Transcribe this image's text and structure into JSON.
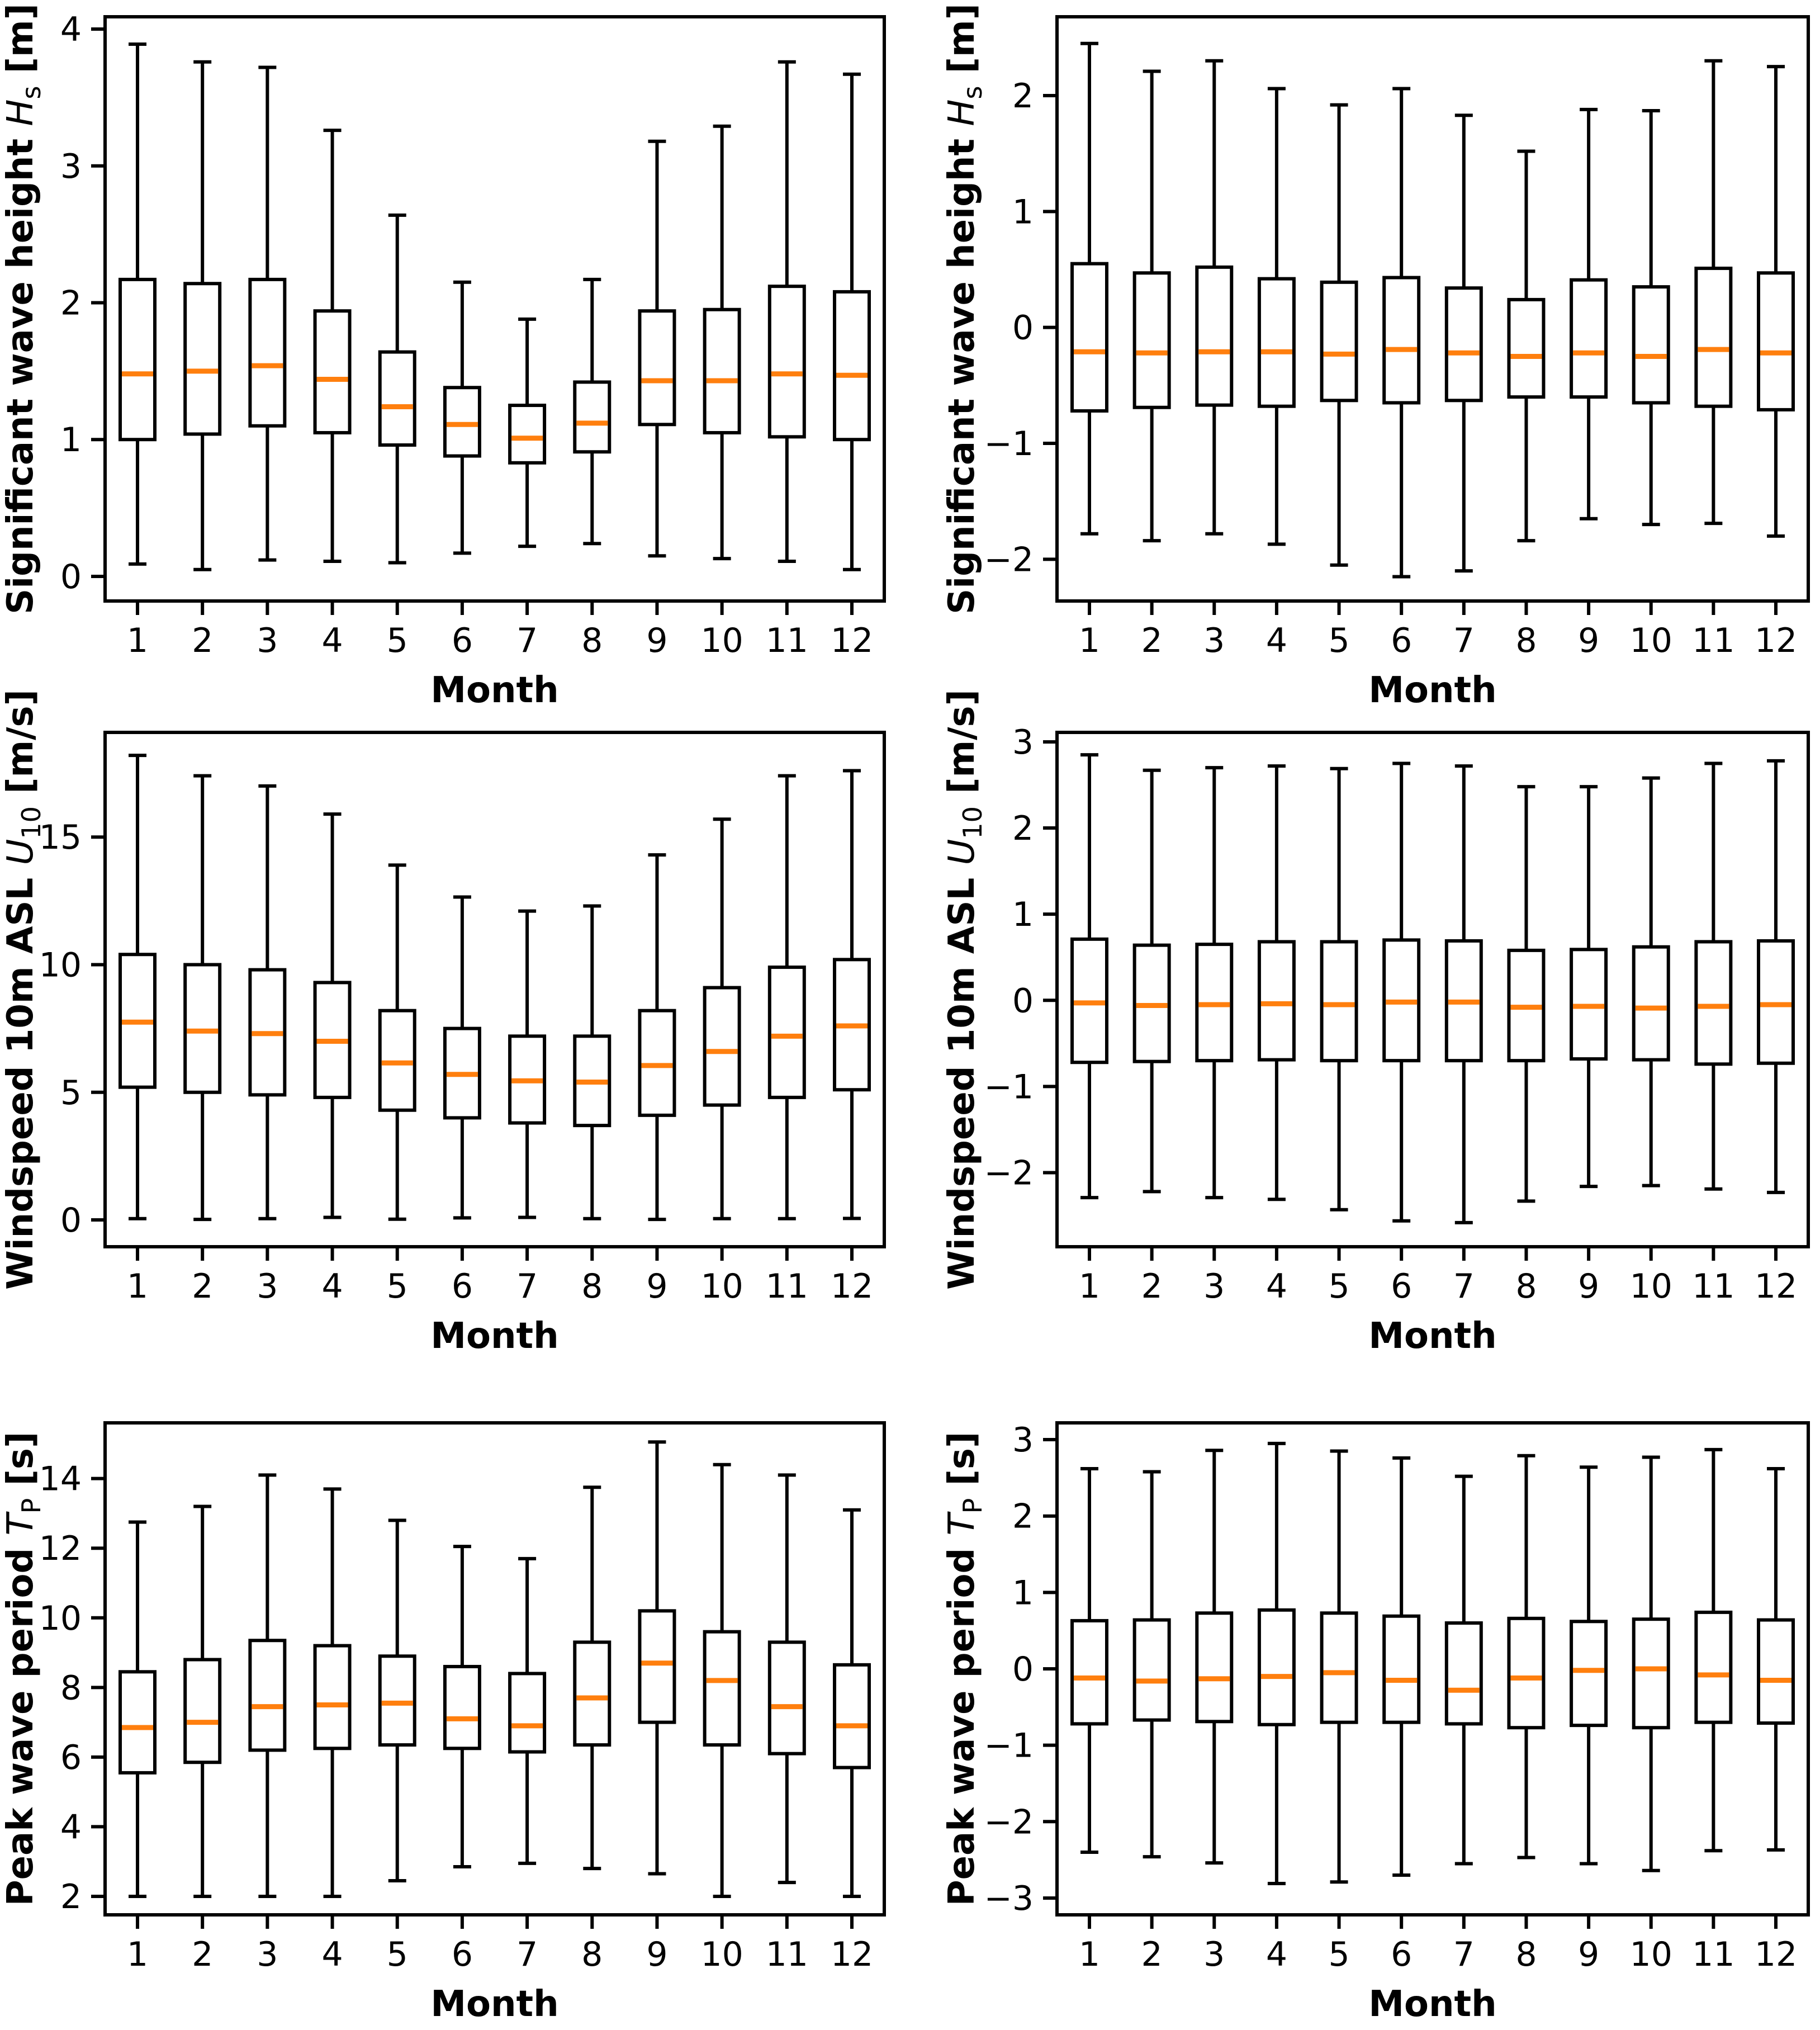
{
  "page": {
    "background": "#ffffff"
  },
  "style": {
    "line_color": "#000000",
    "median_color": "#ff7f0e",
    "box_fill": "#ffffff"
  },
  "chart_data": [
    {
      "id": "hs-monthly",
      "type": "boxplot",
      "position": {
        "row": 0,
        "col": 0
      },
      "xlabel": "Month",
      "ylabel": {
        "prefix": "Significant wave height ",
        "sym": "H",
        "sub": "s",
        "suffix": " [m]"
      },
      "categories": [
        "1",
        "2",
        "3",
        "4",
        "5",
        "6",
        "7",
        "8",
        "9",
        "10",
        "11",
        "12"
      ],
      "yticks": [
        0,
        1,
        2,
        3,
        4
      ],
      "ylim": [
        -0.18,
        4.09
      ],
      "grid": false,
      "legend": null,
      "series": {
        "whisker_low": [
          0.09,
          0.05,
          0.12,
          0.11,
          0.1,
          0.17,
          0.22,
          0.24,
          0.15,
          0.13,
          0.11,
          0.05
        ],
        "q1": [
          1.0,
          1.04,
          1.1,
          1.05,
          0.96,
          0.88,
          0.83,
          0.91,
          1.11,
          1.05,
          1.02,
          1.0
        ],
        "median": [
          1.48,
          1.5,
          1.54,
          1.44,
          1.24,
          1.11,
          1.01,
          1.12,
          1.43,
          1.43,
          1.48,
          1.47
        ],
        "q3": [
          2.17,
          2.14,
          2.17,
          1.94,
          1.64,
          1.38,
          1.25,
          1.42,
          1.94,
          1.95,
          2.12,
          2.08
        ],
        "whisker_high": [
          3.89,
          3.76,
          3.72,
          3.26,
          2.64,
          2.15,
          1.88,
          2.17,
          3.18,
          3.29,
          3.76,
          3.67
        ]
      }
    },
    {
      "id": "hs-anomaly-monthly",
      "type": "boxplot",
      "position": {
        "row": 0,
        "col": 1
      },
      "xlabel": "Month",
      "ylabel": {
        "prefix": "Significant wave height ",
        "sym": "H",
        "sub": "s",
        "suffix": " [m]"
      },
      "categories": [
        "1",
        "2",
        "3",
        "4",
        "5",
        "6",
        "7",
        "8",
        "9",
        "10",
        "11",
        "12"
      ],
      "yticks": [
        -2,
        -1,
        0,
        1,
        2
      ],
      "ylim": [
        -2.36,
        2.68
      ],
      "grid": false,
      "legend": null,
      "series": {
        "whisker_low": [
          -1.78,
          -1.84,
          -1.78,
          -1.87,
          -2.05,
          -2.15,
          -2.1,
          -1.84,
          -1.65,
          -1.7,
          -1.69,
          -1.8
        ],
        "q1": [
          -0.72,
          -0.69,
          -0.67,
          -0.68,
          -0.63,
          -0.65,
          -0.63,
          -0.6,
          -0.6,
          -0.65,
          -0.68,
          -0.71
        ],
        "median": [
          -0.21,
          -0.22,
          -0.21,
          -0.21,
          -0.23,
          -0.19,
          -0.22,
          -0.25,
          -0.22,
          -0.25,
          -0.19,
          -0.22
        ],
        "q3": [
          0.55,
          0.47,
          0.52,
          0.42,
          0.39,
          0.43,
          0.34,
          0.24,
          0.41,
          0.35,
          0.51,
          0.47
        ],
        "whisker_high": [
          2.45,
          2.21,
          2.3,
          2.06,
          1.92,
          2.06,
          1.83,
          1.52,
          1.88,
          1.87,
          2.3,
          2.25
        ]
      }
    },
    {
      "id": "u10-monthly",
      "type": "boxplot",
      "position": {
        "row": 1,
        "col": 0
      },
      "xlabel": "Month",
      "ylabel": {
        "prefix": "Windspeed 10m ASL ",
        "sym": "U",
        "sub": "10",
        "suffix": " [m/s]"
      },
      "categories": [
        "1",
        "2",
        "3",
        "4",
        "5",
        "6",
        "7",
        "8",
        "9",
        "10",
        "11",
        "12"
      ],
      "yticks": [
        0,
        5,
        10,
        15
      ],
      "ylim": [
        -1.05,
        19.1
      ],
      "grid": false,
      "legend": null,
      "series": {
        "whisker_low": [
          0.05,
          0.02,
          0.05,
          0.1,
          0.03,
          0.08,
          0.1,
          0.05,
          0.02,
          0.05,
          0.05,
          0.06
        ],
        "q1": [
          5.2,
          5.0,
          4.9,
          4.8,
          4.3,
          4.0,
          3.8,
          3.7,
          4.1,
          4.5,
          4.8,
          5.1
        ],
        "median": [
          7.75,
          7.4,
          7.3,
          7.0,
          6.15,
          5.7,
          5.45,
          5.4,
          6.05,
          6.6,
          7.2,
          7.6
        ],
        "q3": [
          10.4,
          10.0,
          9.8,
          9.3,
          8.2,
          7.5,
          7.2,
          7.2,
          8.2,
          9.1,
          9.9,
          10.2
        ],
        "whisker_high": [
          18.2,
          17.4,
          17.0,
          15.9,
          13.9,
          12.65,
          12.1,
          12.3,
          14.3,
          15.7,
          17.4,
          17.6
        ]
      }
    },
    {
      "id": "u10-anomaly-monthly",
      "type": "boxplot",
      "position": {
        "row": 1,
        "col": 1
      },
      "xlabel": "Month",
      "ylabel": {
        "prefix": "Windspeed 10m ASL ",
        "sym": "U",
        "sub": "10",
        "suffix": " [m/s]"
      },
      "categories": [
        "1",
        "2",
        "3",
        "4",
        "5",
        "6",
        "7",
        "8",
        "9",
        "10",
        "11",
        "12"
      ],
      "yticks": [
        -2,
        -1,
        0,
        1,
        2,
        3
      ],
      "ylim": [
        -2.86,
        3.11
      ],
      "grid": false,
      "legend": null,
      "series": {
        "whisker_low": [
          -2.29,
          -2.22,
          -2.29,
          -2.31,
          -2.43,
          -2.56,
          -2.58,
          -2.33,
          -2.16,
          -2.15,
          -2.19,
          -2.23
        ],
        "q1": [
          -0.72,
          -0.71,
          -0.7,
          -0.69,
          -0.7,
          -0.7,
          -0.7,
          -0.7,
          -0.68,
          -0.69,
          -0.74,
          -0.73
        ],
        "median": [
          -0.03,
          -0.06,
          -0.05,
          -0.04,
          -0.05,
          -0.02,
          -0.02,
          -0.08,
          -0.07,
          -0.09,
          -0.07,
          -0.05
        ],
        "q3": [
          0.71,
          0.64,
          0.65,
          0.68,
          0.68,
          0.7,
          0.69,
          0.58,
          0.59,
          0.62,
          0.68,
          0.69
        ],
        "whisker_high": [
          2.85,
          2.67,
          2.7,
          2.72,
          2.69,
          2.75,
          2.72,
          2.48,
          2.48,
          2.58,
          2.75,
          2.78
        ]
      }
    },
    {
      "id": "tp-monthly",
      "type": "boxplot",
      "position": {
        "row": 2,
        "col": 0
      },
      "xlabel": "Month",
      "ylabel": {
        "prefix": "Peak wave period ",
        "sym": "T",
        "sub": "P",
        "suffix": " [s]"
      },
      "categories": [
        "1",
        "2",
        "3",
        "4",
        "5",
        "6",
        "7",
        "8",
        "9",
        "10",
        "11",
        "12"
      ],
      "yticks": [
        2,
        4,
        6,
        8,
        10,
        12,
        14
      ],
      "ylim": [
        1.47,
        15.6
      ],
      "grid": false,
      "legend": null,
      "series": {
        "whisker_low": [
          2.0,
          2.0,
          2.0,
          2.0,
          2.45,
          2.85,
          2.95,
          2.8,
          2.65,
          2.0,
          2.4,
          2.0
        ],
        "q1": [
          5.55,
          5.85,
          6.2,
          6.25,
          6.35,
          6.25,
          6.15,
          6.35,
          7.0,
          6.35,
          6.1,
          5.7
        ],
        "median": [
          6.85,
          7.0,
          7.45,
          7.5,
          7.55,
          7.1,
          6.9,
          7.7,
          8.7,
          8.2,
          7.45,
          6.9
        ],
        "q3": [
          8.45,
          8.8,
          9.35,
          9.2,
          8.9,
          8.6,
          8.4,
          9.3,
          10.2,
          9.6,
          9.3,
          8.65
        ],
        "whisker_high": [
          12.75,
          13.2,
          14.1,
          13.7,
          12.8,
          12.05,
          11.7,
          13.75,
          15.05,
          14.4,
          14.1,
          13.1
        ]
      }
    },
    {
      "id": "tp-anomaly-monthly",
      "type": "boxplot",
      "position": {
        "row": 2,
        "col": 1
      },
      "xlabel": "Month",
      "ylabel": {
        "prefix": "Peak wave period ",
        "sym": "T",
        "sub": "P",
        "suffix": " [s]"
      },
      "categories": [
        "1",
        "2",
        "3",
        "4",
        "5",
        "6",
        "7",
        "8",
        "9",
        "10",
        "11",
        "12"
      ],
      "yticks": [
        -3,
        -2,
        -1,
        0,
        1,
        2,
        3
      ],
      "ylim": [
        -3.22,
        3.22
      ],
      "grid": false,
      "legend": null,
      "series": {
        "whisker_low": [
          -2.4,
          -2.46,
          -2.54,
          -2.81,
          -2.79,
          -2.7,
          -2.55,
          -2.47,
          -2.55,
          -2.64,
          -2.38,
          -2.37
        ],
        "q1": [
          -0.72,
          -0.67,
          -0.69,
          -0.73,
          -0.7,
          -0.7,
          -0.72,
          -0.77,
          -0.74,
          -0.77,
          -0.7,
          -0.71
        ],
        "median": [
          -0.12,
          -0.16,
          -0.13,
          -0.1,
          -0.05,
          -0.15,
          -0.28,
          -0.12,
          -0.02,
          0.0,
          -0.08,
          -0.15
        ],
        "q3": [
          0.63,
          0.64,
          0.73,
          0.77,
          0.73,
          0.69,
          0.6,
          0.66,
          0.62,
          0.65,
          0.74,
          0.64
        ],
        "whisker_high": [
          2.62,
          2.58,
          2.86,
          2.95,
          2.85,
          2.76,
          2.52,
          2.79,
          2.64,
          2.77,
          2.87,
          2.62
        ]
      }
    }
  ]
}
